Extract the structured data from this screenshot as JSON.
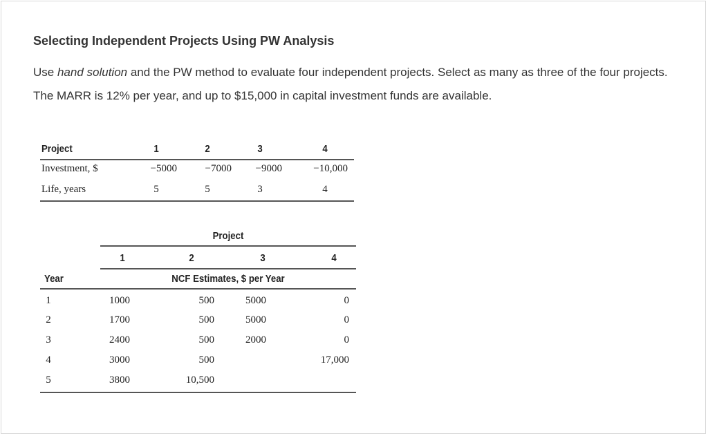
{
  "title": "Selecting Independent Projects Using PW Analysis",
  "paragraph": {
    "before": "Use ",
    "emphasis": "hand solution",
    "after": " and the PW method to evaluate four independent projects. Select as many as three of the four projects. The MARR is 12% per year, and up to $15,000 in capital investment funds are available."
  },
  "table1": {
    "header_label": "Project",
    "columns": [
      "1",
      "2",
      "3",
      "4"
    ],
    "rows": [
      {
        "label": "Investment, $",
        "values": [
          "−5000",
          "−7000",
          "−9000",
          "−10,000"
        ]
      },
      {
        "label": "Life, years",
        "values": [
          "5",
          "5",
          "3",
          "4"
        ]
      }
    ]
  },
  "table2": {
    "group_header": "Project",
    "columns": [
      "1",
      "2",
      "3",
      "4"
    ],
    "year_header": "Year",
    "sub_header": "NCF Estimates, $ per Year",
    "rows": [
      {
        "year": "1",
        "values": [
          "1000",
          "500",
          "5000",
          "0"
        ]
      },
      {
        "year": "2",
        "values": [
          "1700",
          "500",
          "5000",
          "0"
        ]
      },
      {
        "year": "3",
        "values": [
          "2400",
          "500",
          "2000",
          "0"
        ]
      },
      {
        "year": "4",
        "values": [
          "3000",
          "500",
          "",
          "17,000"
        ]
      },
      {
        "year": "5",
        "values": [
          "3800",
          "10,500",
          "",
          ""
        ]
      }
    ]
  }
}
